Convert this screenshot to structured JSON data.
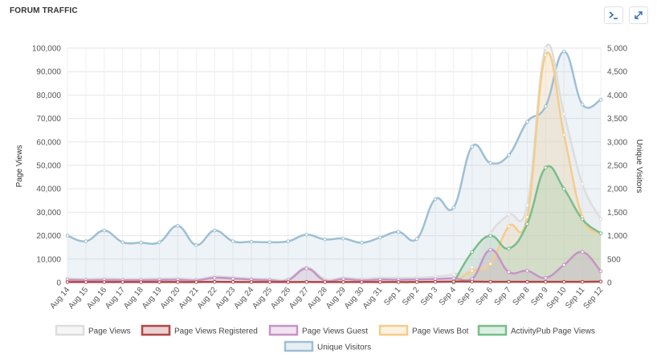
{
  "header": {
    "title": "FORUM TRAFFIC"
  },
  "toolbar": {
    "terminal_icon": "terminal-icon",
    "expand_icon": "expand-icon"
  },
  "chart_data": {
    "type": "area",
    "x": [
      "Aug 14",
      "Aug 15",
      "Aug 16",
      "Aug 17",
      "Aug 18",
      "Aug 19",
      "Aug 20",
      "Aug 21",
      "Aug 22",
      "Aug 23",
      "Aug 24",
      "Aug 25",
      "Aug 26",
      "Aug 27",
      "Aug 28",
      "Aug 29",
      "Aug 30",
      "Aug 31",
      "Sep 1",
      "Sep 2",
      "Sep 3",
      "Sep 4",
      "Sep 5",
      "Sep 6",
      "Sep 7",
      "Sep 8",
      "Sep 9",
      "Sep 10",
      "Sep 11",
      "Sep 12"
    ],
    "ylabel": "Page Views",
    "y2label": "Unique Visitors",
    "ylim": [
      0,
      100000
    ],
    "y2lim": [
      0,
      5000
    ],
    "yticks": [
      "0",
      "10,000",
      "20,000",
      "30,000",
      "40,000",
      "50,000",
      "60,000",
      "70,000",
      "80,000",
      "90,000",
      "100,000"
    ],
    "y2ticks": [
      "0",
      "500",
      "1,000",
      "1,500",
      "2,000",
      "2,500",
      "3,000",
      "3,500",
      "4,000",
      "4,500",
      "5,000"
    ],
    "grid": true,
    "legend_position": "bottom",
    "series": [
      {
        "name": "Page Views",
        "axis": "left",
        "color": "#dddddd",
        "values": [
          1800,
          1500,
          1800,
          1500,
          1600,
          1700,
          1800,
          1400,
          2600,
          2200,
          1700,
          1500,
          1500,
          6500,
          1500,
          2000,
          1600,
          2000,
          2000,
          2000,
          2500,
          3500,
          6500,
          21000,
          29000,
          33000,
          100000,
          72000,
          42000,
          27000
        ]
      },
      {
        "name": "Page Views Registered",
        "axis": "left",
        "color": "#b04747",
        "values": [
          200,
          200,
          200,
          200,
          200,
          200,
          200,
          200,
          300,
          250,
          200,
          200,
          200,
          250,
          200,
          200,
          200,
          200,
          200,
          200,
          300,
          400,
          400,
          300,
          300,
          300,
          300,
          300,
          300,
          400
        ]
      },
      {
        "name": "Page Views Guest",
        "axis": "left",
        "color": "#c595c5",
        "values": [
          1200,
          1000,
          1100,
          1000,
          1000,
          1100,
          1200,
          900,
          2000,
          1700,
          1300,
          1000,
          1000,
          6000,
          800,
          1500,
          900,
          1300,
          1200,
          1300,
          1500,
          1800,
          1500,
          14000,
          4500,
          5000,
          2000,
          7500,
          13000,
          4800
        ]
      },
      {
        "name": "Page Views Bot",
        "axis": "left",
        "color": "#f5cc8a",
        "values": [
          0,
          0,
          0,
          0,
          0,
          0,
          0,
          0,
          0,
          0,
          0,
          0,
          0,
          0,
          0,
          0,
          0,
          0,
          0,
          0,
          0,
          0,
          5000,
          8000,
          24000,
          28000,
          97000,
          63000,
          28000,
          21000
        ]
      },
      {
        "name": "ActivityPub Page Views",
        "axis": "left",
        "color": "#79bd8a",
        "values": [
          0,
          0,
          0,
          0,
          0,
          0,
          0,
          0,
          0,
          0,
          0,
          0,
          0,
          0,
          0,
          0,
          0,
          0,
          0,
          0,
          0,
          0,
          13000,
          20000,
          14500,
          25000,
          49000,
          40000,
          27000,
          21000
        ]
      },
      {
        "name": "Unique Visitors",
        "axis": "right",
        "color": "#9ebfd4",
        "values": [
          1000,
          880,
          1110,
          860,
          850,
          860,
          1210,
          800,
          1110,
          880,
          870,
          860,
          880,
          1020,
          920,
          940,
          850,
          960,
          1080,
          930,
          1780,
          1600,
          2900,
          2550,
          2720,
          3430,
          3760,
          4930,
          3800,
          3900
        ]
      }
    ]
  }
}
